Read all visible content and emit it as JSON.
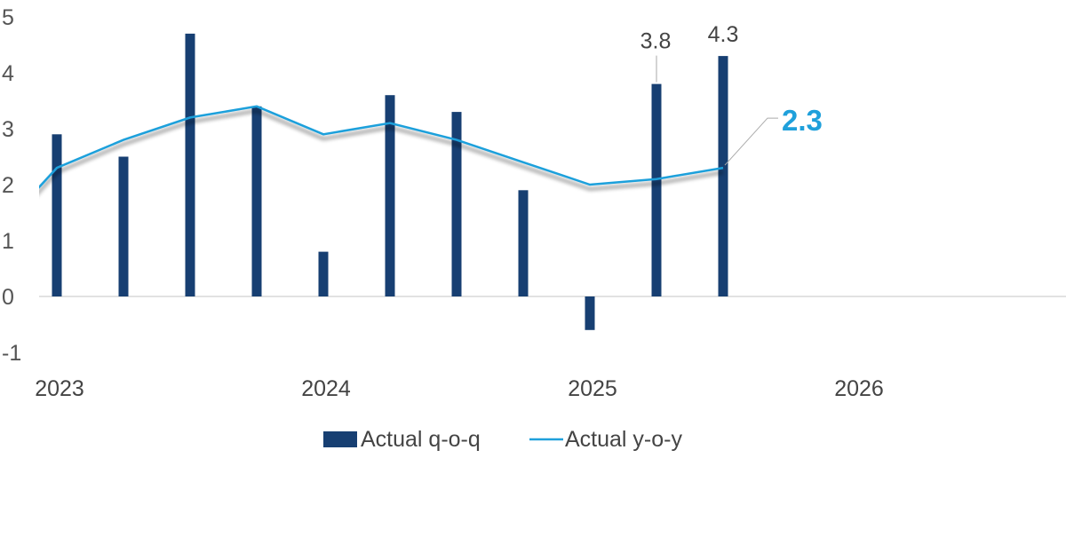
{
  "chart_data": {
    "type": "bar+line",
    "title": "",
    "xlabel": "",
    "ylabel": "",
    "ylim": [
      -1,
      5
    ],
    "yticks": [
      "-1",
      "0",
      "1",
      "2",
      "3",
      "4",
      "5"
    ],
    "xtick_labels": [
      "2023",
      "2024",
      "2025",
      "2026"
    ],
    "grid": false,
    "legend_position": "bottom",
    "categories": [
      "2023Q1",
      "2023Q2",
      "2023Q3",
      "2023Q4",
      "2024Q1",
      "2024Q2",
      "2024Q3",
      "2024Q4",
      "2025Q1",
      "2025Q2",
      "2025Q3"
    ],
    "series": [
      {
        "name": "Actual q-o-q",
        "type": "bar",
        "color": "#173f72",
        "values": [
          2.9,
          2.5,
          4.7,
          3.4,
          0.8,
          3.6,
          3.3,
          1.9,
          -0.6,
          3.8,
          4.3
        ]
      },
      {
        "name": "Actual y-o-y",
        "type": "line",
        "color": "#1fa0db",
        "values": [
          2.3,
          2.8,
          3.2,
          3.4,
          2.9,
          3.1,
          2.8,
          2.4,
          2.0,
          2.1,
          2.3
        ]
      }
    ],
    "data_labels": [
      {
        "series": "Actual q-o-q",
        "category": "2025Q2",
        "text": "3.8"
      },
      {
        "series": "Actual q-o-q",
        "category": "2025Q3",
        "text": "4.3"
      },
      {
        "series": "Actual y-o-y",
        "category": "2025Q3",
        "text": "2.3"
      }
    ]
  }
}
